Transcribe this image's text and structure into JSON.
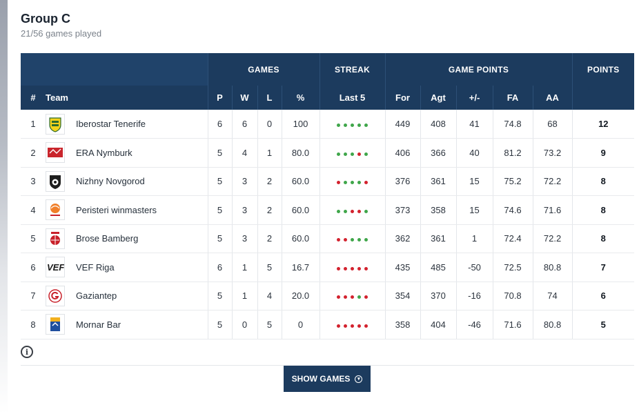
{
  "header": {
    "title": "Group C",
    "games_played": "21/56 games played"
  },
  "table": {
    "group_headers": {
      "games": "GAMES",
      "streak": "STREAK",
      "game_points": "GAME POINTS",
      "points": "POINTS"
    },
    "columns": {
      "rank": "#",
      "team": "Team",
      "p": "P",
      "w": "W",
      "l": "L",
      "pct": "%",
      "last5": "Last 5",
      "for": "For",
      "agt": "Agt",
      "diff": "+/-",
      "fa": "FA",
      "aa": "AA"
    },
    "rows": [
      {
        "rank": "1",
        "team": "Iberostar Tenerife",
        "logo": "tenerife-logo",
        "p": "6",
        "w": "6",
        "l": "0",
        "pct": "100",
        "streak": [
          "W",
          "W",
          "W",
          "W",
          "W"
        ],
        "for": "449",
        "agt": "408",
        "diff": "41",
        "fa": "74.8",
        "aa": "68",
        "pts": "12"
      },
      {
        "rank": "2",
        "team": "ERA Nymburk",
        "logo": "nymburk-logo",
        "p": "5",
        "w": "4",
        "l": "1",
        "pct": "80.0",
        "streak": [
          "W",
          "W",
          "W",
          "L",
          "W"
        ],
        "for": "406",
        "agt": "366",
        "diff": "40",
        "fa": "81.2",
        "aa": "73.2",
        "pts": "9"
      },
      {
        "rank": "3",
        "team": "Nizhny Novgorod",
        "logo": "nizhny-logo",
        "p": "5",
        "w": "3",
        "l": "2",
        "pct": "60.0",
        "streak": [
          "L",
          "W",
          "W",
          "W",
          "L"
        ],
        "for": "376",
        "agt": "361",
        "diff": "15",
        "fa": "75.2",
        "aa": "72.2",
        "pts": "8"
      },
      {
        "rank": "4",
        "team": "Peristeri winmasters",
        "logo": "peristeri-logo",
        "p": "5",
        "w": "3",
        "l": "2",
        "pct": "60.0",
        "streak": [
          "W",
          "W",
          "L",
          "L",
          "W"
        ],
        "for": "373",
        "agt": "358",
        "diff": "15",
        "fa": "74.6",
        "aa": "71.6",
        "pts": "8"
      },
      {
        "rank": "5",
        "team": "Brose Bamberg",
        "logo": "bamberg-logo",
        "p": "5",
        "w": "3",
        "l": "2",
        "pct": "60.0",
        "streak": [
          "L",
          "L",
          "W",
          "W",
          "W"
        ],
        "for": "362",
        "agt": "361",
        "diff": "1",
        "fa": "72.4",
        "aa": "72.2",
        "pts": "8"
      },
      {
        "rank": "6",
        "team": "VEF Riga",
        "logo": "vef-logo",
        "p": "6",
        "w": "1",
        "l": "5",
        "pct": "16.7",
        "streak": [
          "L",
          "L",
          "L",
          "L",
          "L"
        ],
        "for": "435",
        "agt": "485",
        "diff": "-50",
        "fa": "72.5",
        "aa": "80.8",
        "pts": "7"
      },
      {
        "rank": "7",
        "team": "Gaziantep",
        "logo": "gaziantep-logo",
        "p": "5",
        "w": "1",
        "l": "4",
        "pct": "20.0",
        "streak": [
          "L",
          "L",
          "L",
          "W",
          "L"
        ],
        "for": "354",
        "agt": "370",
        "diff": "-16",
        "fa": "70.8",
        "aa": "74",
        "pts": "6"
      },
      {
        "rank": "8",
        "team": "Mornar Bar",
        "logo": "mornar-logo",
        "p": "5",
        "w": "0",
        "l": "5",
        "pct": "0",
        "streak": [
          "L",
          "L",
          "L",
          "L",
          "L"
        ],
        "for": "358",
        "agt": "404",
        "diff": "-46",
        "fa": "71.6",
        "aa": "80.8",
        "pts": "5"
      }
    ]
  },
  "footer": {
    "info_icon": "info-icon",
    "show_games_label": "SHOW GAMES",
    "show_games_icon": "chevron-down-circle-icon"
  },
  "colors": {
    "header_bg": "#1c3b5e",
    "win": "#3fa64a",
    "loss": "#d3222e"
  }
}
